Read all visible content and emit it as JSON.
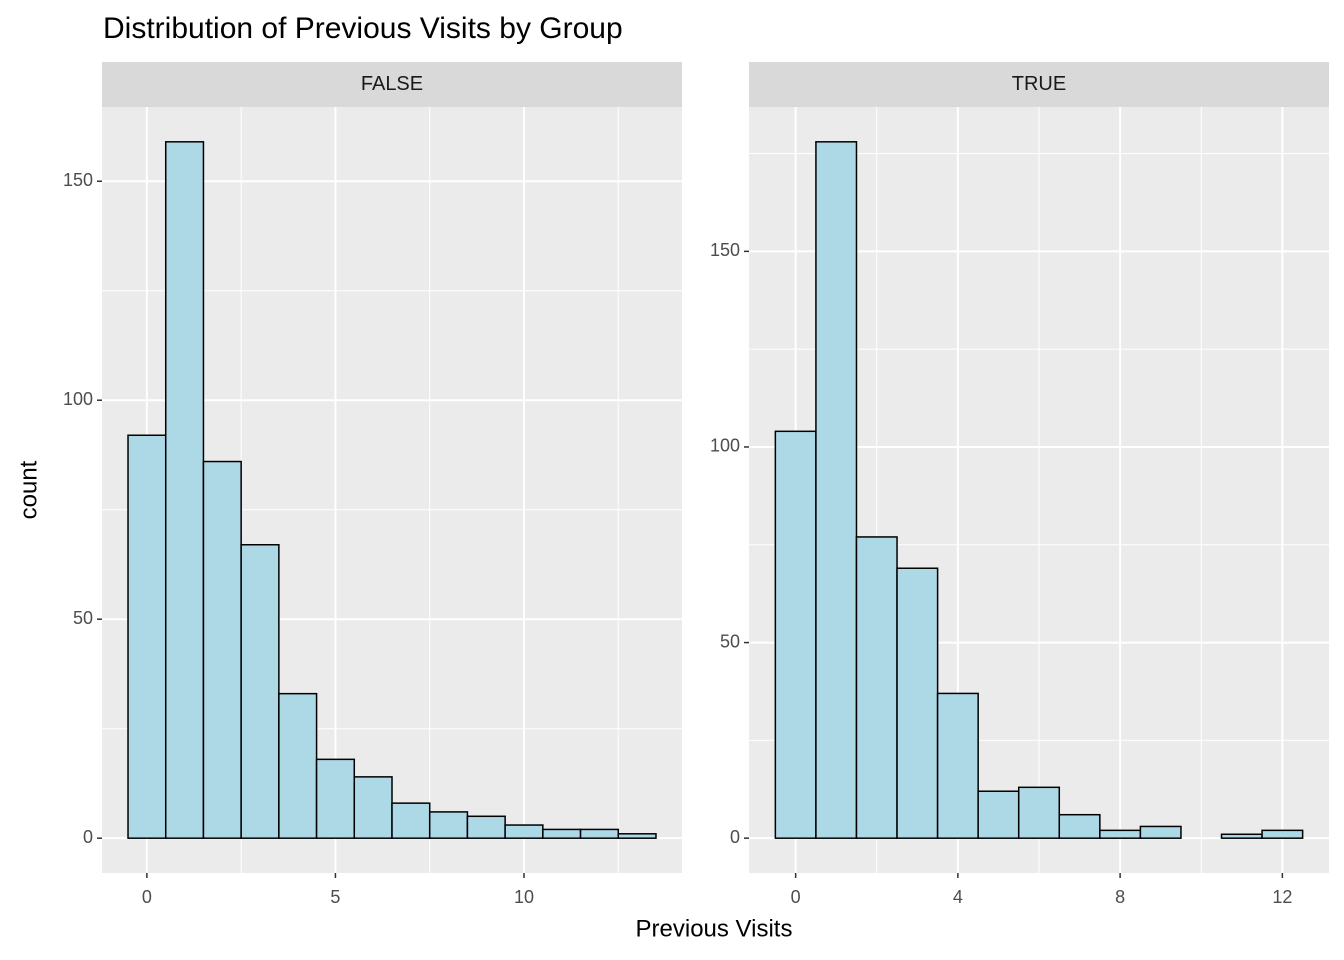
{
  "title": "Distribution of Previous Visits by Group",
  "x_label": "Previous Visits",
  "y_label": "count",
  "chart_data": [
    {
      "type": "histogram",
      "facet": "FALSE",
      "color": "#add8e6",
      "edge_color": "#000000",
      "bins": [
        -0.5,
        0.5,
        1.5,
        2.5,
        3.5,
        4.5,
        5.5,
        6.5,
        7.5,
        8.5,
        9.5,
        10.5,
        11.5,
        12.5,
        13.5
      ],
      "values": [
        92,
        159,
        86,
        67,
        33,
        18,
        14,
        8,
        6,
        5,
        3,
        2,
        2,
        1
      ],
      "xlim": [
        -1.19,
        14.19
      ],
      "ylim": [
        -7.95,
        166.95
      ],
      "xticks": [
        0,
        5,
        10
      ],
      "yticks": [
        0,
        50,
        100,
        150
      ],
      "minor_xticks": [
        2.5,
        7.5,
        12.5
      ],
      "minor_yticks": [
        25,
        75,
        125
      ],
      "grid": true
    },
    {
      "type": "histogram",
      "facet": "TRUE",
      "color": "#add8e6",
      "edge_color": "#000000",
      "bins": [
        -0.5,
        0.5,
        1.5,
        2.5,
        3.5,
        4.5,
        5.5,
        6.5,
        7.5,
        8.5,
        9.5,
        10.5,
        11.5,
        12.5
      ],
      "values": [
        104,
        178,
        77,
        69,
        37,
        12,
        13,
        6,
        2,
        3,
        0,
        1,
        2
      ],
      "xlim": [
        -1.15,
        13.15
      ],
      "ylim": [
        -8.9,
        186.9
      ],
      "xticks": [
        0,
        4,
        8,
        12
      ],
      "yticks": [
        0,
        50,
        100,
        150
      ],
      "minor_xticks": [
        2,
        6,
        10
      ],
      "minor_yticks": [
        25,
        75,
        125,
        175
      ],
      "grid": true
    }
  ]
}
